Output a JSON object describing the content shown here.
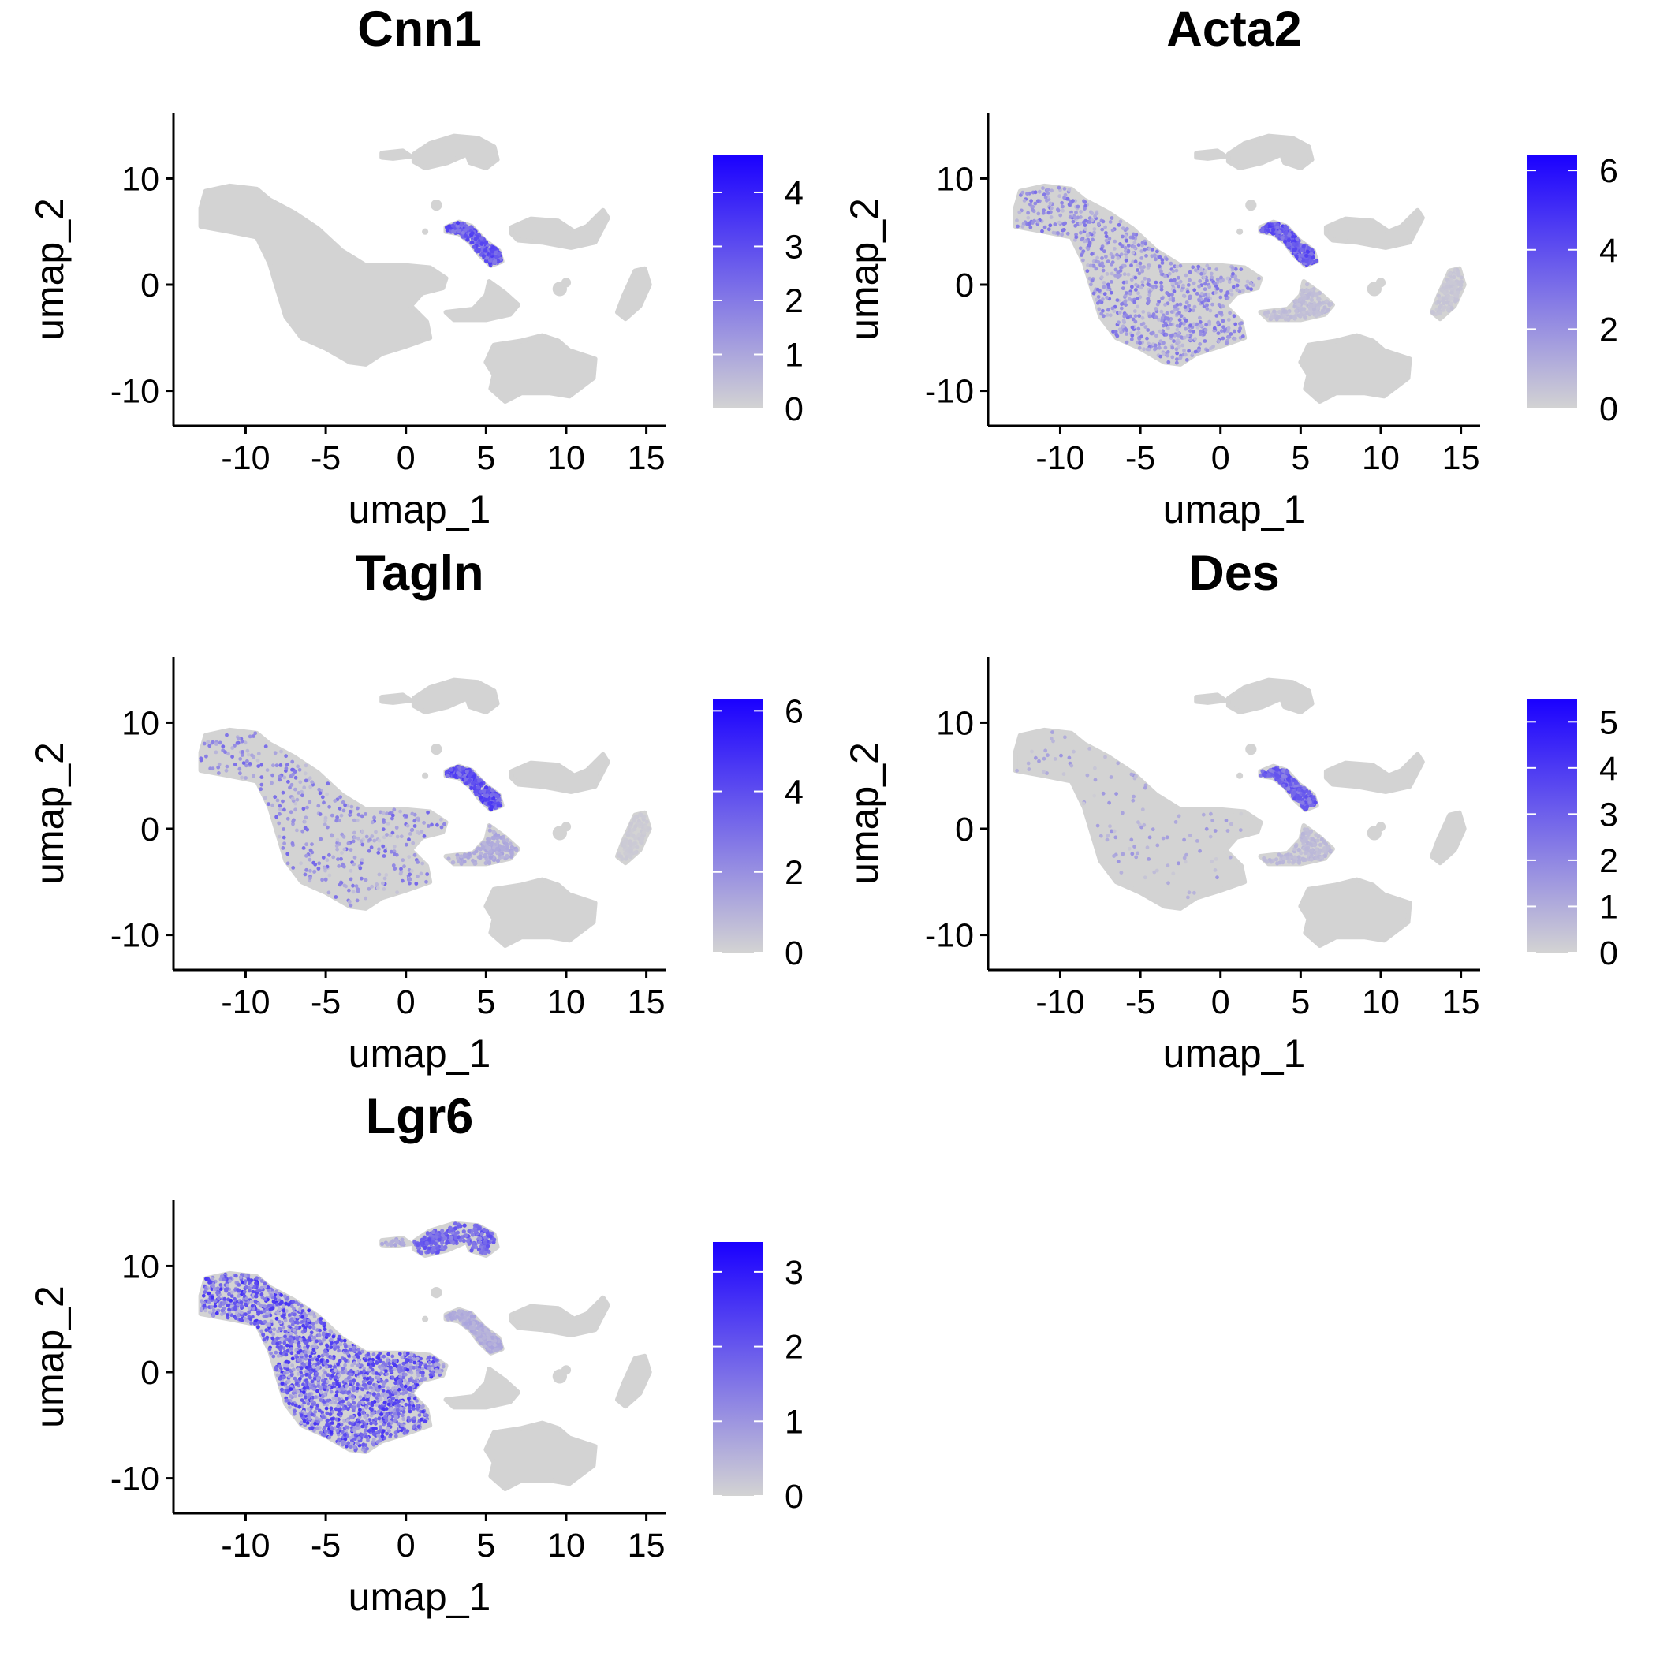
{
  "colors": {
    "low": "#d3d3d3",
    "high": "#1a00ff",
    "background": "#ffffff"
  },
  "chart_data": [
    {
      "type": "scatter",
      "title": "Cnn1",
      "xlabel": "umap_1",
      "ylabel": "umap_2",
      "xlim": [
        -14.5,
        16.2
      ],
      "ylim": [
        -13.3,
        16.2
      ],
      "xticks": [
        -10,
        -5,
        0,
        5,
        10,
        15
      ],
      "xtick_labels": [
        "-10",
        "-5",
        "0",
        "5",
        "10",
        "15"
      ],
      "yticks": [
        -10,
        0,
        10
      ],
      "ytick_labels": [
        "-10",
        "0",
        "10"
      ],
      "legend": {
        "position": "right",
        "max": 4.7,
        "ticks": [
          0,
          1,
          2,
          3,
          4
        ],
        "tick_labels": [
          "0",
          "1",
          "2",
          "3",
          "4"
        ]
      },
      "expression": {
        "main": 0.0,
        "top": 0.0,
        "small_top": 0.0,
        "arc": 3.4,
        "right_cluster": 0.0,
        "mid": 0.0,
        "bottom": 0.0,
        "far_right": 0.0,
        "sparse_main": 0.0,
        "sparse_rate": 0.0,
        "sparse_main_low": 0.0
      }
    },
    {
      "type": "scatter",
      "title": "Acta2",
      "xlabel": "umap_1",
      "ylabel": "umap_2",
      "xlim": [
        -14.5,
        16.2
      ],
      "ylim": [
        -13.3,
        16.2
      ],
      "xticks": [
        -10,
        -5,
        0,
        5,
        10,
        15
      ],
      "xtick_labels": [
        "-10",
        "-5",
        "0",
        "5",
        "10",
        "15"
      ],
      "yticks": [
        -10,
        0,
        10
      ],
      "ytick_labels": [
        "-10",
        "0",
        "10"
      ],
      "legend": {
        "position": "right",
        "max": 6.4,
        "ticks": [
          0,
          2,
          4,
          6
        ],
        "tick_labels": [
          "0",
          "2",
          "4",
          "6"
        ]
      },
      "expression": {
        "main": 0.0,
        "top": 0.0,
        "small_top": 0.0,
        "arc": 4.6,
        "right_cluster": 0.0,
        "mid": 0.8,
        "bottom": 0.0,
        "far_right": 0.5,
        "sparse_main": 2.5,
        "sparse_rate": 0.12,
        "sparse_main_low": 2.0
      }
    },
    {
      "type": "scatter",
      "title": "Tagln",
      "xlabel": "umap_1",
      "ylabel": "umap_2",
      "xlim": [
        -14.5,
        16.2
      ],
      "ylim": [
        -13.3,
        16.2
      ],
      "xticks": [
        -10,
        -5,
        0,
        5,
        10,
        15
      ],
      "xtick_labels": [
        "-10",
        "-5",
        "0",
        "5",
        "10",
        "15"
      ],
      "yticks": [
        -10,
        0,
        10
      ],
      "ytick_labels": [
        "-10",
        "0",
        "10"
      ],
      "legend": {
        "position": "right",
        "max": 6.3,
        "ticks": [
          0,
          2,
          4,
          6
        ],
        "tick_labels": [
          "0",
          "2",
          "4",
          "6"
        ]
      },
      "expression": {
        "main": 0.0,
        "top": 0.0,
        "small_top": 0.0,
        "arc": 4.8,
        "right_cluster": 0.0,
        "mid": 1.5,
        "bottom": 0.0,
        "far_right": 0.3,
        "sparse_main": 3.0,
        "sparse_rate": 0.06,
        "sparse_main_low": 1.0
      }
    },
    {
      "type": "scatter",
      "title": "Des",
      "xlabel": "umap_1",
      "ylabel": "umap_2",
      "xlim": [
        -14.5,
        16.2
      ],
      "ylim": [
        -13.3,
        16.2
      ],
      "xticks": [
        -10,
        -5,
        0,
        5,
        10,
        15
      ],
      "xtick_labels": [
        "-10",
        "-5",
        "0",
        "5",
        "10",
        "15"
      ],
      "yticks": [
        -10,
        0,
        10
      ],
      "ytick_labels": [
        "-10",
        "0",
        "10"
      ],
      "legend": {
        "position": "right",
        "max": 5.5,
        "ticks": [
          0,
          1,
          2,
          3,
          4,
          5
        ],
        "tick_labels": [
          "0",
          "1",
          "2",
          "3",
          "4",
          "5"
        ]
      },
      "expression": {
        "main": 0.0,
        "top": 0.0,
        "small_top": 0.0,
        "arc": 3.6,
        "right_cluster": 0.0,
        "mid": 0.8,
        "bottom": 0.0,
        "far_right": 0.0,
        "sparse_main": 1.5,
        "sparse_rate": 0.02,
        "sparse_main_low": 0.5
      }
    },
    {
      "type": "scatter",
      "title": "Lgr6",
      "xlabel": "umap_1",
      "ylabel": "umap_2",
      "xlim": [
        -14.5,
        16.2
      ],
      "ylim": [
        -13.3,
        16.2
      ],
      "xticks": [
        -10,
        -5,
        0,
        5,
        10,
        15
      ],
      "xtick_labels": [
        "-10",
        "-5",
        "0",
        "5",
        "10",
        "15"
      ],
      "yticks": [
        -10,
        0,
        10
      ],
      "ytick_labels": [
        "-10",
        "0",
        "10"
      ],
      "legend": {
        "position": "right",
        "max": 3.4,
        "ticks": [
          0,
          1,
          2,
          3
        ],
        "tick_labels": [
          "0",
          "1",
          "2",
          "3"
        ]
      },
      "expression": {
        "main": 0.0,
        "top": 2.2,
        "small_top": 0.8,
        "arc": 0.8,
        "right_cluster": 0.0,
        "mid": 0.0,
        "bottom": 0.0,
        "far_right": 0.0,
        "sparse_main": 2.2,
        "sparse_rate": 0.3,
        "sparse_main_low": 1.5
      }
    }
  ]
}
